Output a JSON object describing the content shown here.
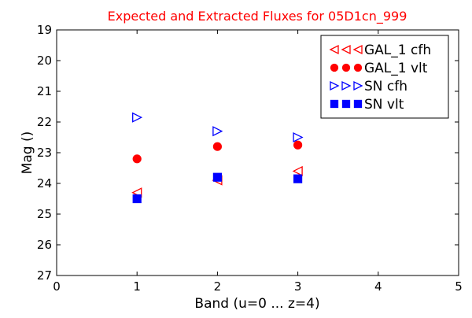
{
  "chart_data": {
    "type": "scatter",
    "title": "Expected and Extracted Fluxes for 05D1cn_999",
    "title_color": "#ff0000",
    "xlabel": "Band (u=0 ... z=4)",
    "ylabel": "Mag ()",
    "xlim": [
      0,
      5
    ],
    "ylim": [
      27,
      19
    ],
    "y_inverted": true,
    "x_ticks": [
      0,
      1,
      2,
      3,
      4,
      5
    ],
    "y_ticks": [
      19,
      20,
      21,
      22,
      23,
      24,
      25,
      26,
      27
    ],
    "grid": false,
    "legend_position": "top-right",
    "series": [
      {
        "name": "GAL_1 cfh",
        "marker": "triangle-left",
        "filled": false,
        "color": "#ff0000",
        "x": [
          1,
          2,
          3
        ],
        "y": [
          24.3,
          23.9,
          23.6
        ]
      },
      {
        "name": "GAL_1 vlt",
        "marker": "circle",
        "filled": true,
        "color": "#ff0000",
        "x": [
          1,
          2,
          3
        ],
        "y": [
          23.2,
          22.8,
          22.75
        ]
      },
      {
        "name": "SN cfh",
        "marker": "triangle-right",
        "filled": false,
        "color": "#0000ff",
        "x": [
          1,
          2,
          3
        ],
        "y": [
          21.85,
          22.3,
          22.5
        ]
      },
      {
        "name": "SN vlt",
        "marker": "square",
        "filled": true,
        "color": "#0000ff",
        "x": [
          1,
          2,
          3
        ],
        "y": [
          24.5,
          23.8,
          23.85
        ]
      }
    ]
  }
}
